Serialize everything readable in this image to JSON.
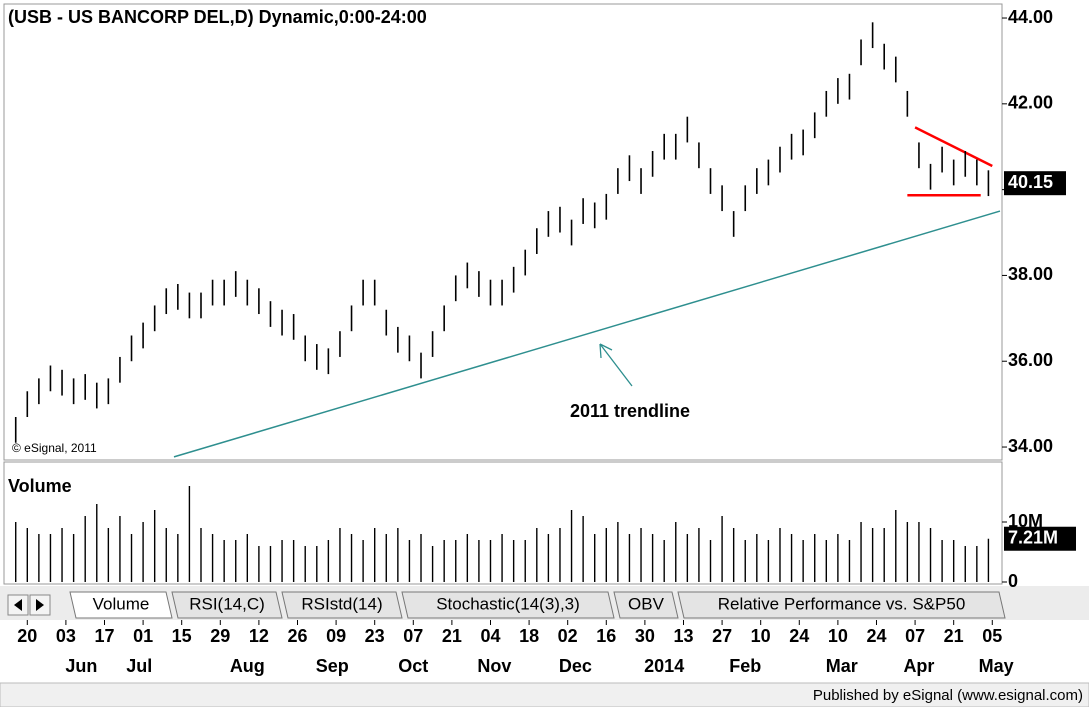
{
  "chart_data": {
    "type": "ohlc",
    "title": "(USB - US BANCORP DEL,D) Dynamic,0:00-24:00",
    "copyright": "© eSignal, 2011",
    "annotation": "2011 trendline",
    "footer": "Published by eSignal (www.esignal.com)",
    "tabs": [
      "Volume",
      "RSI(14,C)",
      "RSIstd(14)",
      "Stochastic(14(3),3)",
      "OBV",
      "Relative Performance vs. S&P50"
    ],
    "xlim": [
      -5,
      252
    ],
    "x": [
      -3,
      0,
      3,
      6,
      9,
      12,
      15,
      18,
      21,
      24,
      27,
      30,
      33,
      36,
      39,
      42,
      45,
      48,
      51,
      54,
      57,
      60,
      63,
      66,
      69,
      72,
      75,
      78,
      81,
      84,
      87,
      90,
      93,
      96,
      99,
      102,
      105,
      108,
      111,
      114,
      117,
      120,
      123,
      126,
      129,
      132,
      135,
      138,
      141,
      144,
      147,
      150,
      153,
      156,
      159,
      162,
      165,
      168,
      171,
      174,
      177,
      180,
      183,
      186,
      189,
      192,
      195,
      198,
      201,
      204,
      207,
      210,
      213,
      216,
      219,
      222,
      225,
      228,
      231,
      234,
      237,
      240,
      243,
      246,
      249
    ],
    "xticks": [
      {
        "value": 0,
        "label": "20"
      },
      {
        "value": 10,
        "label": "03"
      },
      {
        "value": 20,
        "label": "17"
      },
      {
        "value": 30,
        "label": "01"
      },
      {
        "value": 40,
        "label": "15"
      },
      {
        "value": 50,
        "label": "29"
      },
      {
        "value": 60,
        "label": "12"
      },
      {
        "value": 70,
        "label": "26"
      },
      {
        "value": 80,
        "label": "09"
      },
      {
        "value": 90,
        "label": "23"
      },
      {
        "value": 100,
        "label": "07"
      },
      {
        "value": 110,
        "label": "21"
      },
      {
        "value": 120,
        "label": "04"
      },
      {
        "value": 130,
        "label": "18"
      },
      {
        "value": 140,
        "label": "02"
      },
      {
        "value": 150,
        "label": "16"
      },
      {
        "value": 160,
        "label": "30"
      },
      {
        "value": 170,
        "label": "13"
      },
      {
        "value": 180,
        "label": "27"
      },
      {
        "value": 190,
        "label": "10"
      },
      {
        "value": 200,
        "label": "24"
      },
      {
        "value": 210,
        "label": "10"
      },
      {
        "value": 220,
        "label": "24"
      },
      {
        "value": 230,
        "label": "07"
      },
      {
        "value": 240,
        "label": "21"
      },
      {
        "value": 250,
        "label": "05"
      }
    ],
    "month_ticks": [
      {
        "value": 14,
        "label": "Jun"
      },
      {
        "value": 29,
        "label": "Jul"
      },
      {
        "value": 57,
        "label": "Aug"
      },
      {
        "value": 79,
        "label": "Sep"
      },
      {
        "value": 100,
        "label": "Oct"
      },
      {
        "value": 121,
        "label": "Nov"
      },
      {
        "value": 142,
        "label": "Dec"
      },
      {
        "value": 165,
        "label": "2014"
      },
      {
        "value": 186,
        "label": "Feb"
      },
      {
        "value": 211,
        "label": "Mar"
      },
      {
        "value": 231,
        "label": "Apr"
      },
      {
        "value": 251,
        "label": "May"
      }
    ],
    "price": {
      "color": "#000000",
      "ylim": [
        33.7,
        44.25
      ],
      "yticks": [
        {
          "value": 34,
          "label": "34.00"
        },
        {
          "value": 36,
          "label": "36.00"
        },
        {
          "value": 38,
          "label": "38.00"
        },
        {
          "value": 40,
          "label": "40.00"
        },
        {
          "value": 42,
          "label": "42.00"
        },
        {
          "value": 44,
          "label": "44.00"
        }
      ],
      "last_value": 40.15,
      "high": [
        34.7,
        35.3,
        35.6,
        35.9,
        35.8,
        35.6,
        35.7,
        35.5,
        35.6,
        36.1,
        36.6,
        36.9,
        37.3,
        37.7,
        37.8,
        37.6,
        37.6,
        37.9,
        37.9,
        38.1,
        37.9,
        37.7,
        37.4,
        37.2,
        37.1,
        36.6,
        36.4,
        36.3,
        36.7,
        37.3,
        37.9,
        37.9,
        37.2,
        36.8,
        36.6,
        36.2,
        36.7,
        37.3,
        38.0,
        38.3,
        38.1,
        37.9,
        37.9,
        38.2,
        38.6,
        39.1,
        39.5,
        39.6,
        39.3,
        39.8,
        39.7,
        39.9,
        40.5,
        40.8,
        40.5,
        40.9,
        41.3,
        41.3,
        41.7,
        41.1,
        40.5,
        40.1,
        39.5,
        40.1,
        40.5,
        40.7,
        41.0,
        41.3,
        41.4,
        41.8,
        42.3,
        42.6,
        42.7,
        43.5,
        43.9,
        43.4,
        43.1,
        42.3,
        41.1,
        40.6,
        41.0,
        40.7,
        40.9,
        40.7,
        40.45
      ],
      "low": [
        34.1,
        34.7,
        35.0,
        35.3,
        35.2,
        35.0,
        35.1,
        34.9,
        35.0,
        35.5,
        36.0,
        36.3,
        36.7,
        37.1,
        37.2,
        37.0,
        37.0,
        37.3,
        37.3,
        37.5,
        37.3,
        37.1,
        36.8,
        36.6,
        36.5,
        36.0,
        35.8,
        35.7,
        36.1,
        36.7,
        37.3,
        37.3,
        36.6,
        36.2,
        36.0,
        35.6,
        36.1,
        36.7,
        37.4,
        37.7,
        37.5,
        37.3,
        37.3,
        37.6,
        38.0,
        38.5,
        38.9,
        39.0,
        38.7,
        39.2,
        39.1,
        39.3,
        39.9,
        40.2,
        39.9,
        40.3,
        40.7,
        40.7,
        41.1,
        40.5,
        39.9,
        39.5,
        38.9,
        39.5,
        39.9,
        40.1,
        40.4,
        40.7,
        40.8,
        41.2,
        41.7,
        42.0,
        42.1,
        42.9,
        43.3,
        42.8,
        42.5,
        41.7,
        40.5,
        40.0,
        40.4,
        40.1,
        40.3,
        40.1,
        39.85
      ]
    },
    "trendlines": [
      {
        "x": [
          38,
          252
        ],
        "y": [
          33.77,
          39.5
        ],
        "color": "#2e8f8f"
      },
      {
        "x": [
          230,
          250
        ],
        "y": [
          41.45,
          40.55
        ],
        "color": "#ff0000"
      },
      {
        "x": [
          228,
          247
        ],
        "y": [
          39.87,
          39.87
        ],
        "color": "#ff0000"
      }
    ],
    "volume": {
      "title": "Volume",
      "color": "#000000",
      "ylim": [
        0,
        19000000
      ],
      "yticks": [
        {
          "value": 10000000,
          "label": "10M"
        },
        0
      ],
      "last_value": 7210000,
      "last_value_label": "7.21M",
      "values": [
        10000000,
        9000000,
        8000000,
        8000000,
        9000000,
        8000000,
        11000000,
        13000000,
        9000000,
        11000000,
        8000000,
        10000000,
        12000000,
        9000000,
        8000000,
        16000000,
        9000000,
        8000000,
        7000000,
        7000000,
        8000000,
        6000000,
        6000000,
        7000000,
        7000000,
        6000000,
        6000000,
        7000000,
        9000000,
        8000000,
        7000000,
        9000000,
        8000000,
        9000000,
        7000000,
        8000000,
        6000000,
        7000000,
        7000000,
        8000000,
        7000000,
        7000000,
        8000000,
        7000000,
        7000000,
        9000000,
        8000000,
        9000000,
        12000000,
        11000000,
        8000000,
        9000000,
        10000000,
        8000000,
        9000000,
        8000000,
        7000000,
        10000000,
        8000000,
        9000000,
        7000000,
        11000000,
        9000000,
        7000000,
        8000000,
        7000000,
        9000000,
        8000000,
        7000000,
        8000000,
        7000000,
        8000000,
        7000000,
        10000000,
        9000000,
        9000000,
        12000000,
        10000000,
        10000000,
        9000000,
        7000000,
        7000000,
        6000000,
        6000000,
        7210000
      ]
    }
  }
}
